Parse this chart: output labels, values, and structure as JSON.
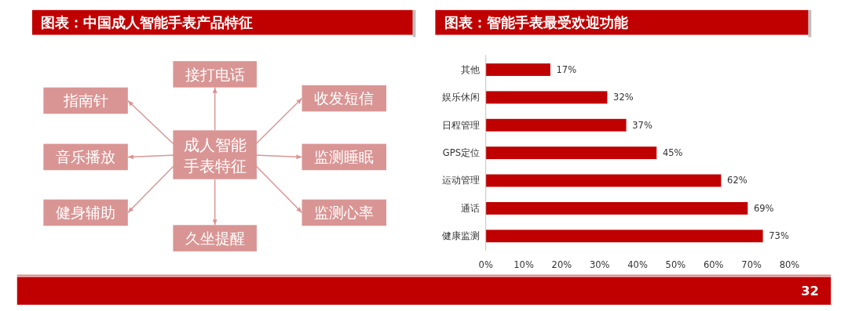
{
  "chart_data": [
    {
      "type": "other",
      "title": "图表：中国成人智能手表产品特征",
      "annotations": [
        "成人智能手表特征",
        "接打电话",
        "收发短信",
        "监测睡眠",
        "监测心率",
        "久坐提醒",
        "健身辅助",
        "音乐播放",
        "指南针"
      ]
    },
    {
      "type": "bar",
      "orientation": "horizontal",
      "title": "图表：智能手表最受欢迎功能",
      "categories": [
        "其他",
        "娱乐休闲",
        "日程管理",
        "GPS定位",
        "运动管理",
        "通话",
        "健康监测"
      ],
      "values": [
        17,
        32,
        37,
        45,
        62,
        69,
        73
      ],
      "color": "#c00000",
      "value_labels": [
        "17%",
        "32%",
        "37%",
        "45%",
        "62%",
        "69%",
        "73%"
      ],
      "xlim": [
        0,
        80
      ],
      "xticks": [
        {
          "value": 0,
          "label": "0%"
        },
        {
          "value": 10,
          "label": "10%"
        },
        {
          "value": 20,
          "label": "20%"
        },
        {
          "value": 30,
          "label": "30%"
        },
        {
          "value": 40,
          "label": "40%"
        },
        {
          "value": 50,
          "label": "50%"
        },
        {
          "value": 60,
          "label": "60%"
        },
        {
          "value": 70,
          "label": "70%"
        },
        {
          "value": 80,
          "label": "80%"
        }
      ],
      "grid": false,
      "annotations": [
        "32"
      ]
    }
  ]
}
